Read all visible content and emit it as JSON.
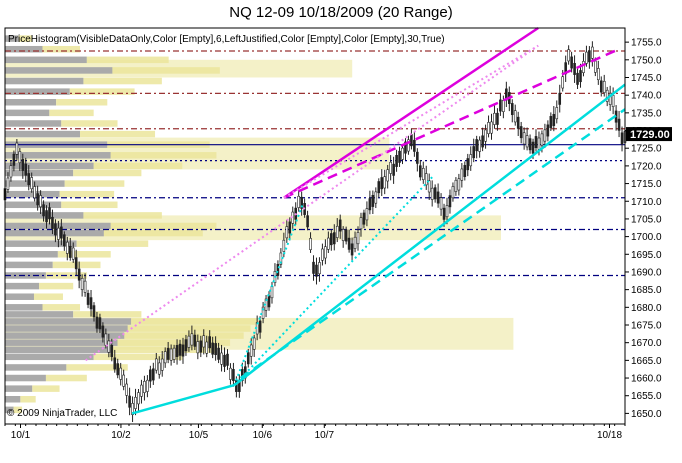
{
  "title": "NQ 12-09  10/18/2009 (20 Range)",
  "indicator_label": "PriceHistogram(VisibleDataOnly,Color [Empty],6,LeftJustified,Color [Empty],Color [Empty],30,True)",
  "copyright": "© 2009 NinjaTrader, LLC",
  "chart_data": {
    "type": "candlestick",
    "title": "NQ 12-09  10/18/2009 (20 Range)",
    "ylim": [
      1647,
      1759
    ],
    "yticks": [
      1650,
      1655,
      1660,
      1665,
      1670,
      1675,
      1680,
      1685,
      1690,
      1695,
      1700,
      1705,
      1710,
      1715,
      1720,
      1725,
      1730,
      1735,
      1740,
      1745,
      1750,
      1755
    ],
    "last_price": "1729.00",
    "last_price_value": 1729.0,
    "x_labels": [
      {
        "label": "10/1",
        "pos": 0.025
      },
      {
        "label": "10/2",
        "pos": 0.187
      },
      {
        "label": "10/5",
        "pos": 0.312
      },
      {
        "label": "10/6",
        "pos": 0.415
      },
      {
        "label": "10/7",
        "pos": 0.515
      },
      {
        "label": "10/18",
        "pos": 0.975
      }
    ],
    "price_path": [
      [
        0.0,
        1712
      ],
      [
        0.02,
        1725
      ],
      [
        0.05,
        1712
      ],
      [
        0.08,
        1703
      ],
      [
        0.11,
        1695
      ],
      [
        0.13,
        1685
      ],
      [
        0.15,
        1676
      ],
      [
        0.17,
        1668
      ],
      [
        0.19,
        1660
      ],
      [
        0.205,
        1651
      ],
      [
        0.22,
        1656
      ],
      [
        0.24,
        1662
      ],
      [
        0.27,
        1667
      ],
      [
        0.3,
        1670
      ],
      [
        0.33,
        1669
      ],
      [
        0.36,
        1664
      ],
      [
        0.375,
        1657
      ],
      [
        0.39,
        1664
      ],
      [
        0.41,
        1675
      ],
      [
        0.43,
        1685
      ],
      [
        0.45,
        1698
      ],
      [
        0.47,
        1708
      ],
      [
        0.48,
        1711
      ],
      [
        0.49,
        1702
      ],
      [
        0.5,
        1688
      ],
      [
        0.52,
        1698
      ],
      [
        0.54,
        1703
      ],
      [
        0.56,
        1697
      ],
      [
        0.58,
        1705
      ],
      [
        0.6,
        1712
      ],
      [
        0.62,
        1718
      ],
      [
        0.64,
        1724
      ],
      [
        0.655,
        1728
      ],
      [
        0.67,
        1719
      ],
      [
        0.69,
        1712
      ],
      [
        0.71,
        1707
      ],
      [
        0.73,
        1715
      ],
      [
        0.75,
        1722
      ],
      [
        0.77,
        1727
      ],
      [
        0.79,
        1733
      ],
      [
        0.81,
        1740
      ],
      [
        0.83,
        1730
      ],
      [
        0.85,
        1724
      ],
      [
        0.87,
        1729
      ],
      [
        0.89,
        1735
      ],
      [
        0.91,
        1752
      ],
      [
        0.925,
        1744
      ],
      [
        0.945,
        1753
      ],
      [
        0.96,
        1743
      ],
      [
        0.98,
        1738
      ],
      [
        0.995,
        1729
      ]
    ],
    "histogram_profile": [
      [
        1651,
        0.05
      ],
      [
        1654,
        0.09
      ],
      [
        1657,
        0.16
      ],
      [
        1660,
        0.24
      ],
      [
        1663,
        0.36
      ],
      [
        1666,
        0.52
      ],
      [
        1668,
        0.62
      ],
      [
        1670,
        0.66
      ],
      [
        1672,
        0.7
      ],
      [
        1674,
        0.72
      ],
      [
        1676,
        0.74
      ],
      [
        1678,
        0.4
      ],
      [
        1680,
        0.22
      ],
      [
        1683,
        0.17
      ],
      [
        1686,
        0.2
      ],
      [
        1689,
        0.24
      ],
      [
        1692,
        0.28
      ],
      [
        1695,
        0.31
      ],
      [
        1698,
        0.42
      ],
      [
        1701,
        0.58
      ],
      [
        1703,
        0.62
      ],
      [
        1706,
        0.46
      ],
      [
        1709,
        0.33
      ],
      [
        1712,
        0.32
      ],
      [
        1715,
        0.35
      ],
      [
        1718,
        0.4
      ],
      [
        1720,
        0.52
      ],
      [
        1723,
        0.62
      ],
      [
        1726,
        0.6
      ],
      [
        1729,
        0.44
      ],
      [
        1732,
        0.33
      ],
      [
        1735,
        0.26
      ],
      [
        1738,
        0.3
      ],
      [
        1741,
        0.38
      ],
      [
        1744,
        0.46
      ],
      [
        1747,
        0.63
      ],
      [
        1750,
        0.48
      ],
      [
        1753,
        0.22
      ],
      [
        1756,
        0.08
      ]
    ],
    "horizontal_lines": [
      {
        "value": 1752.5,
        "style": "dash-dot",
        "color": "#993333"
      },
      {
        "value": 1740.5,
        "style": "dash-dot",
        "color": "#993333"
      },
      {
        "value": 1730.5,
        "style": "dash-dot",
        "color": "#993333"
      },
      {
        "value": 1726.0,
        "style": "solid",
        "color": "#000080"
      },
      {
        "value": 1721.5,
        "style": "dotted",
        "color": "#000080"
      },
      {
        "value": 1711.0,
        "style": "dash-dot",
        "color": "#000080"
      },
      {
        "value": 1702.0,
        "style": "dash-dot",
        "color": "#000080"
      },
      {
        "value": 1689.0,
        "style": "dash-dot",
        "color": "#000080"
      }
    ],
    "trend_lines": [
      {
        "color": "#dd00dd",
        "style": "solid",
        "from": [
          0.45,
          1711
        ],
        "to": [
          0.86,
          1759
        ]
      },
      {
        "color": "#dd00dd",
        "style": "dash",
        "from": [
          0.45,
          1711
        ],
        "to": [
          0.99,
          1753
        ]
      },
      {
        "color": "#ee88ee",
        "style": "dotted",
        "from": [
          0.13,
          1665
        ],
        "to": [
          0.86,
          1754
        ]
      },
      {
        "color": "#ee88ee",
        "style": "dotted",
        "from": [
          0.45,
          1711
        ],
        "to": [
          0.86,
          1754
        ]
      },
      {
        "color": "#00dddd",
        "style": "solid",
        "from": [
          0.205,
          1650
        ],
        "to": [
          0.37,
          1658
        ]
      },
      {
        "color": "#00dddd",
        "style": "solid",
        "from": [
          0.37,
          1658
        ],
        "to": [
          1.0,
          1743
        ]
      },
      {
        "color": "#00dddd",
        "style": "dash",
        "from": [
          0.38,
          1660
        ],
        "to": [
          1.0,
          1736
        ]
      },
      {
        "color": "#00dddd",
        "style": "dotted",
        "from": [
          0.37,
          1658
        ],
        "to": [
          0.48,
          1709
        ]
      },
      {
        "color": "#00dddd",
        "style": "dotted",
        "from": [
          0.37,
          1658
        ],
        "to": [
          0.69,
          1717
        ]
      }
    ],
    "colors": {
      "histogram_grey": "#aaaaaa",
      "histogram_yellow": "#ebe59b",
      "candle": "#222222",
      "magenta": "#dd00dd",
      "cyan": "#00dddd"
    }
  }
}
